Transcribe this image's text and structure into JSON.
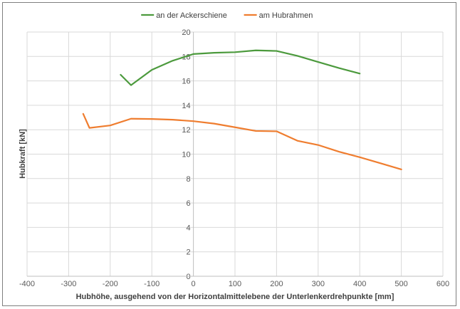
{
  "chart_data": {
    "type": "line",
    "title": "",
    "xlabel": "Hubhöhe, ausgehend von der Horizontalmittelebene der Unterlenkerdrehpunkte [mm]",
    "ylabel": "Hubkraft [kN]",
    "xlim": [
      -400,
      600
    ],
    "ylim": [
      0,
      20
    ],
    "xticks": [
      -400,
      -300,
      -200,
      -100,
      0,
      100,
      200,
      300,
      400,
      500,
      600
    ],
    "yticks": [
      0,
      2,
      4,
      6,
      8,
      10,
      12,
      14,
      16,
      18,
      20
    ],
    "grid": true,
    "legend_position": "top-center",
    "series": [
      {
        "name": "an der Ackerschiene",
        "color": "#4c9a3d",
        "x": [
          -175,
          -150,
          -100,
          -50,
          0,
          50,
          100,
          150,
          200,
          250,
          300,
          350,
          400
        ],
        "y": [
          16.5,
          15.65,
          16.9,
          17.65,
          18.2,
          18.3,
          18.35,
          18.5,
          18.45,
          18.05,
          17.55,
          17.05,
          16.6
        ]
      },
      {
        "name": "am Hubrahmen",
        "color": "#ef7d2f",
        "x": [
          -265,
          -250,
          -200,
          -150,
          -100,
          -50,
          0,
          50,
          100,
          150,
          200,
          250,
          300,
          350,
          400,
          450,
          500
        ],
        "y": [
          13.3,
          12.15,
          12.35,
          12.9,
          12.88,
          12.82,
          12.7,
          12.5,
          12.2,
          11.9,
          11.87,
          11.1,
          10.75,
          10.2,
          9.75,
          9.25,
          8.75
        ]
      }
    ]
  }
}
